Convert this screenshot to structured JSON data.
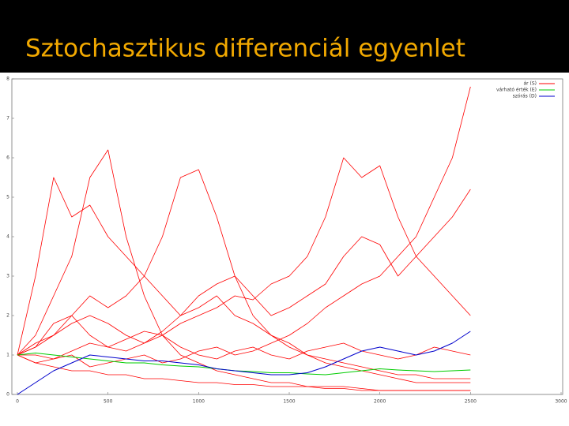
{
  "chart_data": {
    "type": "line",
    "title": "Sztochasztikus differenciál egyenlet",
    "x": [
      0,
      100,
      200,
      300,
      400,
      500,
      600,
      700,
      800,
      900,
      1000,
      1100,
      1200,
      1300,
      1400,
      1500,
      1600,
      1700,
      1800,
      1900,
      2000,
      2100,
      2200,
      2300,
      2400,
      2500
    ],
    "xlim": [
      0,
      3000
    ],
    "xticks": [
      0,
      500,
      1000,
      1500,
      2000,
      2500,
      3000
    ],
    "ylim": [
      0,
      8
    ],
    "yticks": [
      0,
      1,
      2,
      3,
      4,
      5,
      6,
      7,
      8
    ],
    "legend": "upper right",
    "series": [
      {
        "name": "ár (S)",
        "color": "#ff0000",
        "paths": [
          [
            1,
            1.5,
            2.5,
            3.5,
            5.5,
            6.2,
            4,
            2.5,
            1.5,
            1,
            0.8,
            0.6,
            0.5,
            0.4,
            0.3,
            0.3,
            0.2,
            0.2,
            0.2,
            0.15,
            0.1,
            0.1,
            0.1,
            0.1,
            0.1,
            0.1
          ],
          [
            1,
            1.2,
            1.5,
            2,
            2.5,
            2.2,
            2.5,
            3,
            4,
            5.5,
            5.7,
            4.5,
            3,
            2,
            1.5,
            1.2,
            1,
            0.8,
            0.7,
            0.6,
            0.5,
            0.4,
            0.3,
            0.3,
            0.3,
            0.3
          ],
          [
            1,
            1,
            0.9,
            1.1,
            1.3,
            1.2,
            1.4,
            1.6,
            1.5,
            1.8,
            2,
            2.2,
            2.5,
            2.4,
            2.8,
            3,
            3.5,
            4.5,
            6,
            5.5,
            5.8,
            4.5,
            3.5,
            3,
            2.5,
            2
          ],
          [
            1,
            0.8,
            0.9,
            1,
            0.7,
            0.8,
            0.9,
            1,
            0.8,
            0.9,
            1.1,
            1.2,
            1,
            1.1,
            1.3,
            1.5,
            1.8,
            2.2,
            2.5,
            2.8,
            3,
            3.5,
            4,
            5,
            6,
            7.8
          ],
          [
            1,
            3,
            5.5,
            4.5,
            4.8,
            4,
            3.5,
            3,
            2.5,
            2,
            2.2,
            2.5,
            2,
            1.8,
            1.5,
            1.3,
            1,
            0.9,
            0.8,
            0.7,
            0.6,
            0.5,
            0.5,
            0.4,
            0.4,
            0.4
          ],
          [
            1,
            1.3,
            1.5,
            1.8,
            2,
            1.8,
            1.5,
            1.3,
            1.6,
            2,
            2.5,
            2.8,
            3,
            2.5,
            2,
            2.2,
            2.5,
            2.8,
            3.5,
            4,
            3.8,
            3,
            3.5,
            4,
            4.5,
            5.2
          ],
          [
            1,
            0.8,
            0.7,
            0.6,
            0.6,
            0.5,
            0.5,
            0.4,
            0.4,
            0.35,
            0.3,
            0.3,
            0.25,
            0.25,
            0.2,
            0.2,
            0.2,
            0.15,
            0.15,
            0.1,
            0.1,
            0.1,
            0.1,
            0.1,
            0.1,
            0.1
          ],
          [
            1,
            1.2,
            1.8,
            2,
            1.5,
            1.2,
            1.1,
            1.3,
            1.5,
            1.2,
            1,
            0.9,
            1.1,
            1.2,
            1,
            0.9,
            1.1,
            1.2,
            1.3,
            1.1,
            1,
            0.9,
            1,
            1.2,
            1.1,
            1
          ]
        ]
      },
      {
        "name": "várható érték (E)",
        "color": "#00cc00",
        "values": [
          1,
          1.05,
          1.0,
          0.95,
          0.9,
          0.85,
          0.8,
          0.8,
          0.75,
          0.72,
          0.7,
          0.65,
          0.6,
          0.58,
          0.55,
          0.55,
          0.52,
          0.5,
          0.55,
          0.6,
          0.65,
          0.62,
          0.6,
          0.58,
          0.6,
          0.62
        ]
      },
      {
        "name": "szórás (D)",
        "color": "#0000cc",
        "values": [
          0,
          0.3,
          0.6,
          0.8,
          1.0,
          0.95,
          0.9,
          0.85,
          0.85,
          0.8,
          0.75,
          0.65,
          0.6,
          0.55,
          0.5,
          0.5,
          0.55,
          0.7,
          0.9,
          1.1,
          1.2,
          1.1,
          1.0,
          1.1,
          1.3,
          1.6
        ]
      }
    ]
  }
}
